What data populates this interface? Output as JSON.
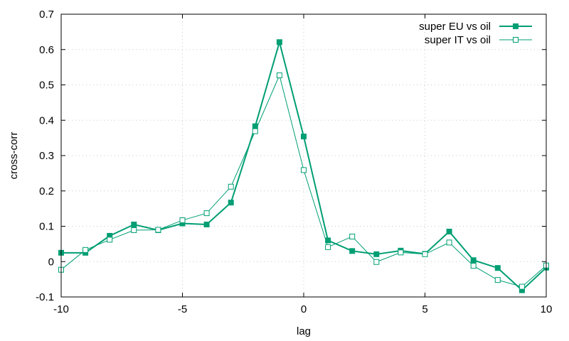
{
  "chart_data": {
    "type": "line",
    "xlabel": "lag",
    "ylabel": "cross-corr",
    "xlim": [
      -10,
      10
    ],
    "ylim": [
      -0.1,
      0.7
    ],
    "x_ticks": [
      -10,
      -5,
      0,
      5,
      10
    ],
    "x_tick_labels": [
      "-10",
      "-5",
      "0",
      "5",
      "10"
    ],
    "y_ticks": [
      -0.1,
      0,
      0.1,
      0.2,
      0.3,
      0.4,
      0.5,
      0.6,
      0.7
    ],
    "y_tick_labels": [
      "-0.1",
      "0",
      "0.1",
      "0.2",
      "0.3",
      "0.4",
      "0.5",
      "0.6",
      "0.7"
    ],
    "grid": true,
    "legend_position": "top-right",
    "x": [
      -10,
      -9,
      -8,
      -7,
      -6,
      -5,
      -4,
      -3,
      -2,
      -1,
      0,
      1,
      2,
      3,
      4,
      5,
      6,
      7,
      8,
      9,
      10
    ],
    "series": [
      {
        "name": "super EU vs oil",
        "color": "#009e73",
        "marker": "filled-square",
        "values": [
          0.025,
          0.025,
          0.073,
          0.105,
          0.089,
          0.108,
          0.105,
          0.167,
          0.383,
          0.621,
          0.354,
          0.06,
          0.03,
          0.021,
          0.031,
          0.022,
          0.085,
          0.004,
          -0.018,
          -0.081,
          -0.017
        ]
      },
      {
        "name": "super IT vs oil",
        "color": "#009e73",
        "marker": "open-square",
        "values": [
          -0.023,
          0.033,
          0.062,
          0.089,
          0.09,
          0.117,
          0.137,
          0.212,
          0.369,
          0.527,
          0.259,
          0.041,
          0.071,
          -0.001,
          0.026,
          0.021,
          0.054,
          -0.012,
          -0.052,
          -0.071,
          -0.011
        ]
      }
    ]
  }
}
